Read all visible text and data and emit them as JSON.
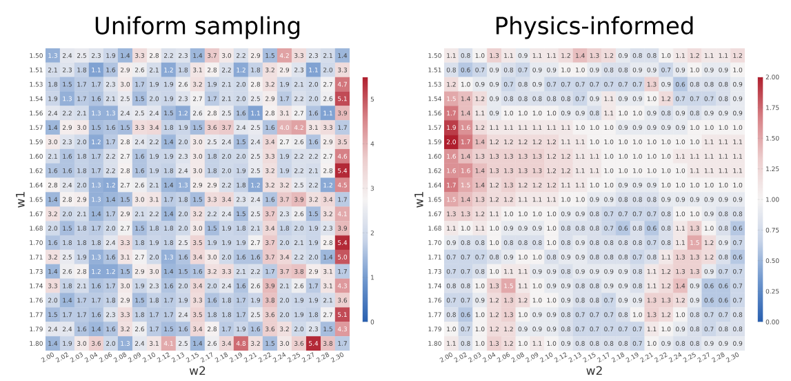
{
  "chart_data": [
    {
      "type": "heatmap",
      "title": "Uniform sampling",
      "xlabel": "w2",
      "ylabel": "w1",
      "data_labels": true,
      "clim": [
        0,
        5.5
      ],
      "cticks": [
        0,
        1,
        2,
        3,
        4,
        5
      ],
      "categories": [
        "2.00",
        "2.02",
        "2.03",
        "2.04",
        "2.06",
        "2.08",
        "2.09",
        "2.10",
        "2.12",
        "2.13",
        "2.15",
        "2.17",
        "2.18",
        "2.19",
        "2.21",
        "2.22",
        "2.24",
        "2.25",
        "2.27",
        "2.28",
        "2.30"
      ],
      "y_categories": [
        "1.50",
        "1.51",
        "1.53",
        "1.54",
        "1.56",
        "1.57",
        "1.59",
        "1.60",
        "1.62",
        "1.64",
        "1.65",
        "1.67",
        "1.68",
        "1.70",
        "1.71",
        "1.73",
        "1.74",
        "1.76",
        "1.77",
        "1.79",
        "1.80"
      ],
      "cells": [
        [
          1.3,
          2.4,
          2.5,
          2.3,
          1.9,
          1.4,
          3.3,
          2.8,
          2.2,
          2.3,
          1.4,
          3.7,
          3.0,
          2.2,
          2.9,
          1.5,
          4.2,
          3.3,
          2.3,
          2.1,
          1.4
        ],
        [
          2.1,
          2.3,
          1.8,
          1.1,
          1.6,
          2.9,
          2.6,
          2.1,
          1.2,
          1.8,
          3.1,
          2.8,
          2.2,
          1.2,
          1.8,
          3.2,
          2.9,
          2.3,
          1.1,
          2.0,
          3.3
        ],
        [
          1.8,
          1.5,
          1.7,
          1.7,
          2.3,
          3.0,
          1.7,
          1.9,
          1.9,
          2.6,
          3.2,
          1.9,
          2.1,
          2.0,
          2.8,
          3.2,
          1.9,
          2.1,
          2.0,
          2.7,
          4.7
        ],
        [
          1.9,
          1.3,
          1.7,
          1.6,
          2.1,
          2.5,
          1.5,
          2.0,
          1.9,
          2.3,
          2.7,
          1.7,
          2.1,
          2.0,
          2.5,
          2.9,
          1.7,
          2.2,
          2.0,
          2.6,
          5.1
        ],
        [
          2.4,
          2.2,
          2.1,
          1.3,
          1.3,
          2.4,
          2.5,
          2.4,
          1.5,
          1.2,
          2.6,
          2.8,
          2.5,
          1.6,
          1.1,
          2.8,
          3.1,
          2.7,
          1.6,
          1.1,
          3.9
        ],
        [
          1.4,
          2.9,
          3.0,
          1.5,
          1.6,
          1.5,
          3.3,
          3.4,
          1.8,
          1.9,
          1.5,
          3.6,
          3.7,
          2.4,
          2.5,
          1.6,
          4.0,
          4.2,
          3.1,
          3.3,
          1.7
        ],
        [
          3.0,
          2.3,
          2.0,
          1.2,
          1.7,
          2.8,
          2.4,
          2.2,
          1.4,
          2.0,
          3.0,
          2.5,
          2.4,
          1.5,
          2.4,
          3.4,
          2.7,
          2.6,
          1.6,
          2.9,
          3.5
        ],
        [
          2.1,
          1.6,
          1.8,
          1.7,
          2.2,
          2.7,
          1.6,
          1.9,
          1.9,
          2.3,
          3.0,
          1.8,
          2.0,
          2.0,
          2.5,
          3.3,
          1.9,
          2.2,
          2.2,
          2.7,
          4.6
        ],
        [
          1.6,
          1.6,
          1.8,
          1.7,
          2.2,
          2.8,
          1.6,
          1.9,
          1.8,
          2.4,
          3.0,
          1.8,
          2.0,
          1.9,
          2.5,
          3.2,
          1.9,
          2.2,
          2.1,
          2.8,
          5.4
        ],
        [
          2.8,
          2.4,
          2.0,
          1.3,
          1.2,
          2.7,
          2.6,
          2.1,
          1.4,
          1.3,
          2.9,
          2.9,
          2.2,
          1.8,
          1.2,
          3.2,
          3.2,
          2.5,
          2.2,
          1.2,
          4.5
        ],
        [
          1.4,
          2.8,
          2.9,
          1.3,
          1.4,
          1.5,
          3.0,
          3.1,
          1.7,
          1.8,
          1.5,
          3.3,
          3.4,
          2.3,
          2.4,
          1.6,
          3.7,
          3.9,
          3.2,
          3.4,
          1.7
        ],
        [
          3.2,
          2.0,
          2.1,
          1.4,
          1.7,
          2.9,
          2.1,
          2.2,
          1.4,
          2.0,
          3.2,
          2.2,
          2.4,
          1.5,
          2.5,
          3.7,
          2.3,
          2.6,
          1.5,
          3.2,
          4.1
        ],
        [
          2.0,
          1.5,
          1.8,
          1.7,
          2.0,
          2.7,
          1.5,
          1.8,
          1.8,
          2.0,
          3.0,
          1.5,
          1.9,
          1.8,
          2.1,
          3.4,
          1.8,
          2.0,
          1.9,
          2.3,
          3.9
        ],
        [
          1.6,
          1.8,
          1.8,
          1.8,
          2.4,
          3.3,
          1.8,
          1.9,
          1.8,
          2.5,
          3.5,
          1.9,
          1.9,
          1.9,
          2.7,
          3.7,
          2.0,
          2.1,
          1.9,
          2.8,
          5.4
        ],
        [
          3.2,
          2.5,
          1.9,
          1.3,
          1.6,
          3.1,
          2.7,
          2.0,
          1.3,
          1.6,
          3.4,
          3.0,
          2.0,
          1.6,
          1.6,
          3.7,
          3.4,
          2.2,
          2.0,
          1.4,
          5.0
        ],
        [
          1.4,
          2.6,
          2.8,
          1.2,
          1.2,
          1.5,
          2.9,
          3.0,
          1.4,
          1.5,
          1.6,
          3.2,
          3.3,
          2.1,
          2.2,
          1.7,
          3.7,
          3.8,
          2.9,
          3.1,
          1.7
        ],
        [
          3.3,
          1.8,
          2.1,
          1.6,
          1.7,
          3.0,
          1.9,
          2.3,
          1.6,
          2.0,
          3.4,
          2.0,
          2.4,
          1.6,
          2.6,
          3.9,
          2.1,
          2.6,
          1.7,
          3.1,
          4.3
        ],
        [
          2.0,
          1.4,
          1.7,
          1.7,
          1.8,
          2.9,
          1.5,
          1.8,
          1.7,
          1.9,
          3.3,
          1.6,
          1.8,
          1.7,
          1.9,
          3.8,
          2.0,
          1.9,
          1.9,
          2.1,
          3.6
        ],
        [
          1.5,
          1.7,
          1.7,
          1.6,
          2.3,
          3.3,
          1.8,
          1.7,
          1.7,
          2.4,
          3.5,
          1.8,
          1.8,
          1.7,
          2.5,
          3.6,
          2.0,
          1.9,
          1.8,
          2.7,
          5.1
        ],
        [
          2.4,
          2.4,
          1.6,
          1.4,
          1.6,
          3.2,
          2.6,
          1.7,
          1.5,
          1.6,
          3.4,
          2.8,
          1.7,
          1.9,
          1.6,
          3.6,
          3.2,
          2.0,
          2.3,
          1.5,
          4.3
        ],
        [
          1.4,
          1.9,
          3.0,
          3.6,
          2.0,
          1.3,
          2.4,
          3.1,
          4.1,
          2.5,
          1.4,
          2.6,
          3.4,
          4.8,
          3.2,
          1.5,
          3.0,
          3.6,
          5.4,
          3.8,
          1.7
        ]
      ],
      "cell_labels": [
        [
          "1.3",
          "2.4",
          "2.5",
          "2.3",
          "1.9",
          "1.4",
          "3.3",
          "2.8",
          "2.2",
          "2.3",
          "1.4",
          "3.7",
          "3.0",
          "2.2",
          "2.9",
          "1.5",
          "4.2",
          "3.3",
          "2.3",
          "2.1",
          "1.4"
        ],
        [
          "2.1",
          "2.3",
          "1.8",
          "1.1",
          "1.6",
          "2.9",
          "2.6",
          "2.1",
          "1.2",
          "1.8",
          "3.1",
          "2.8",
          "2.2",
          "1.2",
          "1.8",
          "3.2",
          "2.9",
          "2.3",
          "1.1",
          "2.0",
          "3.3"
        ],
        [
          "1.8",
          "1.5",
          "1.7",
          "1.7",
          "2.3",
          "3.0",
          "1.7",
          "1.9",
          "1.9",
          "2.6",
          "3.2",
          "1.9",
          "2.1",
          "2.0",
          "2.8",
          "3.2",
          "1.9",
          "2.1",
          "2.0",
          "2.7",
          "4.7"
        ],
        [
          "1.9",
          "1.3",
          "1.7",
          "1.6",
          "2.1",
          "2.5",
          "1.5",
          "2.0",
          "1.9",
          "2.3",
          "2.7",
          "1.7",
          "2.1",
          "2.0",
          "2.5",
          "2.9",
          "1.7",
          "2.2",
          "2.0",
          "2.6",
          "5.1"
        ],
        [
          "2.4",
          "2.2",
          "2.1",
          "1.3",
          "1.3",
          "2.4",
          "2.5",
          "2.4",
          "1.5",
          "1.2",
          "2.6",
          "2.8",
          "2.5",
          "1.6",
          "1.1",
          "2.8",
          "3.1",
          "2.7",
          "1.6",
          "1.1",
          "3.9"
        ],
        [
          "1.4",
          "2.9",
          "3.0",
          "1.5",
          "1.6",
          "1.5",
          "3.3",
          "3.4",
          "1.8",
          "1.9",
          "1.5",
          "3.6",
          "3.7",
          "2.4",
          "2.5",
          "1.6",
          "4.0",
          "4.2",
          "3.1",
          "3.3",
          "1.7"
        ],
        [
          "3.0",
          "2.3",
          "2.0",
          "1.2",
          "1.7",
          "2.8",
          "2.4",
          "2.2",
          "1.4",
          "2.0",
          "3.0",
          "2.5",
          "2.4",
          "1.5",
          "2.4",
          "3.4",
          "2.7",
          "2.6",
          "1.6",
          "2.9",
          "3.5"
        ],
        [
          "2.1",
          "1.6",
          "1.8",
          "1.7",
          "2.2",
          "2.7",
          "1.6",
          "1.9",
          "1.9",
          "2.3",
          "3.0",
          "1.8",
          "2.0",
          "2.0",
          "2.5",
          "3.3",
          "1.9",
          "2.2",
          "2.2",
          "2.7",
          "4.6"
        ],
        [
          "1.6",
          "1.6",
          "1.8",
          "1.7",
          "2.2",
          "2.8",
          "1.6",
          "1.9",
          "1.8",
          "2.4",
          "3.0",
          "1.8",
          "2.0",
          "1.9",
          "2.5",
          "3.2",
          "1.9",
          "2.2",
          "2.1",
          "2.8",
          "5.4"
        ],
        [
          "2.8",
          "2.4",
          "2.0",
          "1.3",
          "1.2",
          "2.7",
          "2.6",
          "2.1",
          "1.4",
          "1.3",
          "2.9",
          "2.9",
          "2.2",
          "1.8",
          "1.2",
          "3.2",
          "3.2",
          "2.5",
          "2.2",
          "1.2",
          "4.5"
        ],
        [
          "1.4",
          "2.8",
          "2.9",
          "1.3",
          "1.4",
          "1.5",
          "3.0",
          "3.1",
          "1.7",
          "1.8",
          "1.5",
          "3.3",
          "3.4",
          "2.3",
          "2.4",
          "1.6",
          "3.7",
          "3.9",
          "3.2",
          "3.4",
          "1.7"
        ],
        [
          "3.2",
          "2.0",
          "2.1",
          "1.4",
          "1.7",
          "2.9",
          "2.1",
          "2.2",
          "1.4",
          "2.0",
          "3.2",
          "2.2",
          "2.4",
          "1.5",
          "2.5",
          "3.7",
          "2.3",
          "2.6",
          "1.5",
          "3.2",
          "4.1"
        ],
        [
          "2.0",
          "1.5",
          "1.8",
          "1.7",
          "2.0",
          "2.7",
          "1.5",
          "1.8",
          "1.8",
          "2.0",
          "3.0",
          "1.5",
          "1.9",
          "1.8",
          "2.1",
          "3.4",
          "1.8",
          "2.0",
          "1.9",
          "2.3",
          "3.9"
        ],
        [
          "1.6",
          "1.8",
          "1.8",
          "1.8",
          "2.4",
          "3.3",
          "1.8",
          "1.9",
          "1.8",
          "2.5",
          "3.5",
          "1.9",
          "1.9",
          "1.9",
          "2.7",
          "3.7",
          "2.0",
          "2.1",
          "1.9",
          "2.8",
          "5.4"
        ],
        [
          "3.2",
          "2.5",
          "1.9",
          "1.3",
          "1.6",
          "3.1",
          "2.7",
          "2.0",
          "1.3",
          "1.6",
          "3.4",
          "3.0",
          "2.0",
          "1.6",
          "1.6",
          "3.7",
          "3.4",
          "2.2",
          "2.0",
          "1.4",
          "5.0"
        ],
        [
          "1.4",
          "2.6",
          "2.8",
          "1.2",
          "1.2",
          "1.5",
          "2.9",
          "3.0",
          "1.4",
          "1.5",
          "1.6",
          "3.2",
          "3.3",
          "2.1",
          "2.2",
          "1.7",
          "3.7",
          "3.8",
          "2.9",
          "3.1",
          "1.7"
        ],
        [
          "3.3",
          "1.8",
          "2.1",
          "1.6",
          "1.7",
          "3.0",
          "1.9",
          "2.3",
          "1.6",
          "2.0",
          "3.4",
          "2.0",
          "2.4",
          "1.6",
          "2.6",
          "3.9",
          "2.1",
          "2.6",
          "1.7",
          "3.1",
          "4.3"
        ],
        [
          "2.0",
          "1.4",
          "1.7",
          "1.7",
          "1.8",
          "2.9",
          "1.5",
          "1.8",
          "1.7",
          "1.9",
          "3.3",
          "1.6",
          "1.8",
          "1.7",
          "1.9",
          "3.8",
          "2.0",
          "1.9",
          "1.9",
          "2.1",
          "3.6"
        ],
        [
          "1.5",
          "1.7",
          "1.7",
          "1.6",
          "2.3",
          "3.3",
          "1.8",
          "1.7",
          "1.7",
          "2.4",
          "3.5",
          "1.8",
          "1.8",
          "1.7",
          "2.5",
          "3.6",
          "2.0",
          "1.9",
          "1.8",
          "2.7",
          "5.1"
        ],
        [
          "2.4",
          "2.4",
          "1.6",
          "1.4",
          "1.6",
          "3.2",
          "2.6",
          "1.7",
          "1.5",
          "1.6",
          "3.4",
          "2.8",
          "1.7",
          "1.9",
          "1.6",
          "3.6",
          "3.2",
          "2.0",
          "2.3",
          "1.5",
          "4.3"
        ],
        [
          "1.4",
          "1.9",
          "3.0",
          "3.6",
          "2.0",
          "1.3",
          "2.4",
          "3.1",
          "4.1",
          "2.5",
          "1.4",
          "2.6",
          "3.4",
          "4.8",
          "3.2",
          "1.5",
          "3.0",
          "3.6",
          "5.4",
          "3.8",
          "1.7"
        ]
      ]
    },
    {
      "type": "heatmap",
      "title": "Physics-informed",
      "xlabel": "w2",
      "ylabel": "w1",
      "data_labels": true,
      "clim": [
        0,
        2
      ],
      "cticks": [
        {
          "value": 0,
          "label": "0.00"
        },
        {
          "value": 0.25,
          "label": "0.25"
        },
        {
          "value": 0.5,
          "label": "0.50"
        },
        {
          "value": 0.75,
          "label": "0.75"
        },
        {
          "value": 1,
          "label": "1.00"
        },
        {
          "value": 1.25,
          "label": "1.25"
        },
        {
          "value": 1.5,
          "label": "1.50"
        },
        {
          "value": 1.75,
          "label": "1.75"
        },
        {
          "value": 2,
          "label": "2.00"
        }
      ],
      "categories": [
        "2.00",
        "2.02",
        "2.03",
        "2.04",
        "2.06",
        "2.08",
        "2.09",
        "2.10",
        "2.12",
        "2.13",
        "2.15",
        "2.17",
        "2.18",
        "2.19",
        "2.21",
        "2.22",
        "2.24",
        "2.25",
        "2.27",
        "2.28",
        "2.30"
      ],
      "y_categories": [
        "1.50",
        "1.51",
        "1.53",
        "1.54",
        "1.56",
        "1.57",
        "1.59",
        "1.60",
        "1.62",
        "1.64",
        "1.65",
        "1.67",
        "1.68",
        "1.70",
        "1.71",
        "1.73",
        "1.74",
        "1.76",
        "1.77",
        "1.79",
        "1.80"
      ],
      "cells": [
        [
          1.1,
          0.8,
          1.0,
          1.3,
          1.1,
          0.9,
          1.1,
          1.1,
          1.2,
          1.4,
          1.3,
          1.2,
          0.9,
          0.8,
          0.8,
          1.0,
          1.1,
          1.2,
          1.1,
          1.1,
          1.2
        ],
        [
          0.8,
          0.6,
          0.7,
          0.9,
          0.8,
          0.7,
          0.9,
          0.9,
          1.0,
          1.0,
          0.9,
          0.8,
          0.8,
          0.9,
          0.9,
          0.7,
          0.9,
          1.0,
          0.9,
          0.9,
          1.0
        ],
        [
          1.2,
          1.0,
          0.9,
          0.9,
          0.7,
          0.8,
          0.9,
          0.7,
          0.7,
          0.7,
          0.7,
          0.7,
          0.7,
          0.7,
          1.3,
          0.9,
          0.6,
          0.8,
          0.8,
          0.8,
          0.9
        ],
        [
          1.5,
          1.4,
          1.2,
          0.9,
          0.8,
          0.8,
          0.8,
          0.8,
          0.8,
          0.7,
          0.9,
          1.1,
          0.9,
          0.9,
          1.0,
          1.2,
          0.7,
          0.7,
          0.7,
          0.8,
          0.9
        ],
        [
          1.7,
          1.4,
          1.1,
          0.9,
          1.0,
          1.0,
          1.0,
          1.0,
          0.9,
          0.9,
          0.8,
          1.1,
          1.0,
          1.0,
          0.9,
          0.8,
          0.9,
          0.8,
          0.9,
          0.9,
          0.9
        ],
        [
          1.9,
          1.6,
          1.2,
          1.1,
          1.1,
          1.1,
          1.1,
          1.1,
          1.1,
          1.0,
          1.0,
          1.0,
          0.9,
          0.9,
          0.9,
          0.9,
          0.9,
          1.0,
          1.0,
          1.0,
          1.0
        ],
        [
          2.0,
          1.7,
          1.4,
          1.2,
          1.2,
          1.2,
          1.2,
          1.2,
          1.1,
          1.1,
          1.0,
          1.0,
          1.0,
          1.0,
          1.0,
          1.0,
          1.0,
          1.0,
          1.1,
          1.1,
          1.1
        ],
        [
          1.6,
          1.4,
          1.3,
          1.3,
          1.3,
          1.3,
          1.3,
          1.2,
          1.2,
          1.1,
          1.1,
          1.0,
          1.0,
          1.0,
          1.0,
          1.0,
          1.1,
          1.1,
          1.1,
          1.1,
          1.1
        ],
        [
          1.6,
          1.6,
          1.4,
          1.3,
          1.3,
          1.3,
          1.3,
          1.2,
          1.2,
          1.1,
          1.1,
          1.0,
          1.0,
          1.0,
          1.0,
          1.0,
          1.0,
          1.1,
          1.1,
          1.1,
          1.1
        ],
        [
          1.7,
          1.5,
          1.4,
          1.2,
          1.3,
          1.2,
          1.2,
          1.2,
          1.1,
          1.1,
          1.0,
          1.0,
          0.9,
          0.9,
          0.9,
          1.0,
          1.0,
          1.0,
          1.0,
          1.0,
          1.0
        ],
        [
          1.5,
          1.4,
          1.3,
          1.2,
          1.2,
          1.1,
          1.1,
          1.1,
          1.0,
          1.0,
          0.9,
          0.9,
          0.8,
          0.8,
          0.8,
          0.9,
          0.9,
          0.9,
          0.9,
          0.9,
          0.9
        ],
        [
          1.3,
          1.3,
          1.2,
          1.1,
          1.0,
          1.0,
          1.0,
          1.0,
          0.9,
          0.9,
          0.8,
          0.7,
          0.7,
          0.7,
          0.7,
          0.8,
          1.0,
          1.0,
          0.9,
          0.8,
          0.8
        ],
        [
          1.1,
          1.0,
          1.1,
          1.0,
          0.9,
          0.9,
          0.9,
          1.0,
          0.8,
          0.8,
          0.8,
          0.7,
          0.6,
          0.8,
          0.6,
          0.8,
          1.1,
          1.3,
          1.0,
          0.8,
          0.6
        ],
        [
          0.9,
          0.8,
          0.8,
          1.0,
          0.8,
          0.8,
          0.8,
          1.0,
          0.8,
          0.9,
          0.8,
          0.8,
          0.8,
          0.8,
          0.7,
          0.8,
          1.1,
          1.5,
          1.2,
          0.9,
          0.7
        ],
        [
          0.7,
          0.7,
          0.7,
          0.8,
          0.9,
          1.0,
          1.0,
          0.8,
          0.9,
          0.9,
          0.8,
          0.8,
          0.8,
          0.7,
          0.8,
          1.1,
          1.3,
          1.3,
          1.2,
          0.8,
          0.6
        ],
        [
          0.7,
          0.7,
          0.8,
          1.0,
          1.1,
          1.1,
          0.9,
          0.9,
          0.8,
          0.9,
          0.9,
          0.9,
          0.9,
          0.8,
          1.1,
          1.2,
          1.3,
          1.3,
          0.9,
          0.7,
          0.7
        ],
        [
          0.8,
          0.8,
          1.0,
          1.3,
          1.5,
          1.1,
          1.0,
          0.9,
          0.9,
          0.8,
          0.8,
          0.9,
          0.9,
          0.8,
          1.1,
          1.2,
          1.4,
          0.9,
          0.6,
          0.6,
          0.7
        ],
        [
          0.7,
          0.7,
          0.9,
          1.2,
          1.3,
          1.2,
          1.0,
          1.0,
          0.9,
          0.8,
          0.8,
          0.7,
          0.9,
          0.9,
          1.3,
          1.3,
          1.2,
          0.9,
          0.6,
          0.6,
          0.7
        ],
        [
          0.8,
          0.6,
          1.0,
          1.2,
          1.3,
          1.0,
          0.9,
          0.9,
          0.8,
          0.7,
          0.7,
          0.7,
          0.8,
          1.0,
          1.3,
          1.2,
          1.0,
          0.8,
          0.7,
          0.7,
          0.8
        ],
        [
          1.0,
          0.7,
          1.0,
          1.2,
          1.2,
          0.9,
          0.9,
          0.9,
          0.8,
          0.7,
          0.7,
          0.7,
          0.7,
          0.7,
          1.1,
          1.0,
          0.9,
          0.8,
          0.7,
          0.8,
          0.8
        ],
        [
          1.1,
          0.8,
          1.0,
          1.3,
          1.2,
          1.0,
          1.1,
          1.0,
          0.9,
          0.8,
          0.8,
          0.8,
          0.8,
          0.7,
          1.0,
          0.9,
          0.8,
          0.8,
          0.9,
          0.9,
          0.9
        ]
      ],
      "cell_labels": [
        [
          "1.1",
          "0.8",
          "1.0",
          "1.3",
          "1.1",
          "0.9",
          "1.1",
          "1.1",
          "1.2",
          "1.4",
          "1.3",
          "1.2",
          "0.9",
          "0.8",
          "0.8",
          "1.0",
          "1.1",
          "1.2",
          "1.1",
          "1.1",
          "1.2"
        ],
        [
          "0.8",
          "0.6",
          "0.7",
          "0.9",
          "0.8",
          "0.7",
          "0.9",
          "0.9",
          "1.0",
          "1.0",
          "0.9",
          "0.8",
          "0.8",
          "0.9",
          "0.9",
          "0.7",
          "0.9",
          "1.0",
          "0.9",
          "0.9",
          "1.0"
        ],
        [
          "1.2",
          "1.0",
          "0.9",
          "0.9",
          "0.7",
          "0.8",
          "0.9",
          "0.7",
          "0.7",
          "0.7",
          "0.7",
          "0.7",
          "0.7",
          "0.7",
          "1.3",
          "0.9",
          "0.6",
          "0.8",
          "0.8",
          "0.8",
          "0.9"
        ],
        [
          "1.5",
          "1.4",
          "1.2",
          "0.9",
          "0.8",
          "0.8",
          "0.8",
          "0.8",
          "0.8",
          "0.7",
          "0.9",
          "1.1",
          "0.9",
          "0.9",
          "1.0",
          "1.2",
          "0.7",
          "0.7",
          "0.7",
          "0.8",
          "0.9"
        ],
        [
          "1.7",
          "1.4",
          "1.1",
          "0.9",
          "1.0",
          "1.0",
          "1.0",
          "1.0",
          "0.9",
          "0.9",
          "0.8",
          "1.1",
          "1.0",
          "1.0",
          "0.9",
          "0.8",
          "0.9",
          "0.8",
          "0.9",
          "0.9",
          "0.9"
        ],
        [
          "1.9",
          "1.6",
          "1.2",
          "1.1",
          "1.1",
          "1.1",
          "1.1",
          "1.1",
          "1.1",
          "1.0",
          "1.0",
          "1.0",
          "0.9",
          "0.9",
          "0.9",
          "0.9",
          "0.9",
          "1.0",
          "1.0",
          "1.0",
          "1.0"
        ],
        [
          "2.0",
          "1.7",
          "1.4",
          "1.2",
          "1.2",
          "1.2",
          "1.2",
          "1.2",
          "1.1",
          "1.1",
          "1.0",
          "1.0",
          "1.0",
          "1.0",
          "1.0",
          "1.0",
          "1.0",
          "1.0",
          "1.1",
          "1.1",
          "1.1"
        ],
        [
          "1.6",
          "1.4",
          "1.3",
          "1.3",
          "1.3",
          "1.3",
          "1.3",
          "1.2",
          "1.2",
          "1.1",
          "1.1",
          "1.0",
          "1.0",
          "1.0",
          "1.0",
          "1.0",
          "1.1",
          "1.1",
          "1.1",
          "1.1",
          "1.1"
        ],
        [
          "1.6",
          "1.6",
          "1.4",
          "1.3",
          "1.3",
          "1.3",
          "1.3",
          "1.2",
          "1.2",
          "1.1",
          "1.1",
          "1.0",
          "1.0",
          "1.0",
          "1.0",
          "1.0",
          "1.0",
          "1.1",
          "1.1",
          "1.1",
          "1.1"
        ],
        [
          "1.7",
          "1.5",
          "1.4",
          "1.2",
          "1.3",
          "1.2",
          "1.2",
          "1.2",
          "1.1",
          "1.1",
          "1.0",
          "1.0",
          "0.9",
          "0.9",
          "0.9",
          "1.0",
          "1.0",
          "1.0",
          "1.0",
          "1.0",
          "1.0"
        ],
        [
          "1.5",
          "1.4",
          "1.3",
          "1.2",
          "1.2",
          "1.1",
          "1.1",
          "1.1",
          "1.0",
          "1.0",
          "0.9",
          "0.9",
          "0.8",
          "0.8",
          "0.8",
          "0.9",
          "0.9",
          "0.9",
          "0.9",
          "0.9",
          "0.9"
        ],
        [
          "1.3",
          "1.3",
          "1.2",
          "1.1",
          "1.0",
          "1.0",
          "1.0",
          "1.0",
          "0.9",
          "0.9",
          "0.8",
          "0.7",
          "0.7",
          "0.7",
          "0.7",
          "0.8",
          "1.0",
          "1.0",
          "0.9",
          "0.8",
          "0.8"
        ],
        [
          "1.1",
          "1.0",
          "1.1",
          "1.0",
          "0.9",
          "0.9",
          "0.9",
          "1.0",
          "0.8",
          "0.8",
          "0.8",
          "0.7",
          "0.6",
          "0.8",
          "0.6",
          "0.8",
          "1.1",
          "1.3",
          "1.0",
          "0.8",
          "0.6"
        ],
        [
          "0.9",
          "0.8",
          "0.8",
          "1.0",
          "0.8",
          "0.8",
          "0.8",
          "1.0",
          "0.8",
          "0.9",
          "0.8",
          "0.8",
          "0.8",
          "0.8",
          "0.7",
          "0.8",
          "1.1",
          "1.5",
          "1.2",
          "0.9",
          "0.7"
        ],
        [
          "0.7",
          "0.7",
          "0.7",
          "0.8",
          "0.9",
          "1.0",
          "1.0",
          "0.8",
          "0.9",
          "0.9",
          "0.8",
          "0.8",
          "0.8",
          "0.7",
          "0.8",
          "1.1",
          "1.3",
          "1.3",
          "1.2",
          "0.8",
          "0.6"
        ],
        [
          "0.7",
          "0.7",
          "0.8",
          "1.0",
          "1.1",
          "1.1",
          "0.9",
          "0.9",
          "0.8",
          "0.9",
          "0.9",
          "0.9",
          "0.9",
          "0.8",
          "1.1",
          "1.2",
          "1.3",
          "1.3",
          "0.9",
          "0.7",
          "0.7"
        ],
        [
          "0.8",
          "0.8",
          "1.0",
          "1.3",
          "1.5",
          "1.1",
          "1.0",
          "0.9",
          "0.9",
          "0.8",
          "0.8",
          "0.9",
          "0.9",
          "0.8",
          "1.1",
          "1.2",
          "1.4",
          "0.9",
          "0.6",
          "0.6",
          "0.7"
        ],
        [
          "0.7",
          "0.7",
          "0.9",
          "1.2",
          "1.3",
          "1.2",
          "1.0",
          "1.0",
          "0.9",
          "0.8",
          "0.8",
          "0.7",
          "0.9",
          "0.9",
          "1.3",
          "1.3",
          "1.2",
          "0.9",
          "0.6",
          "0.6",
          "0.7"
        ],
        [
          "0.8",
          "0.6",
          "1.0",
          "1.2",
          "1.3",
          "1.0",
          "0.9",
          "0.9",
          "0.8",
          "0.7",
          "0.7",
          "0.7",
          "0.8",
          "1.0",
          "1.3",
          "1.2",
          "1.0",
          "0.8",
          "0.7",
          "0.7",
          "0.8"
        ],
        [
          "1.0",
          "0.7",
          "1.0",
          "1.2",
          "1.2",
          "0.9",
          "0.9",
          "0.9",
          "0.8",
          "0.7",
          "0.7",
          "0.7",
          "0.7",
          "0.7",
          "1.1",
          "1.0",
          "0.9",
          "0.8",
          "0.7",
          "0.8",
          "0.8"
        ],
        [
          "1.1",
          "0.8",
          "1.0",
          "1.3",
          "1.2",
          "1.0",
          "1.1",
          "1.0",
          "0.9",
          "0.8",
          "0.8",
          "0.8",
          "0.8",
          "0.7",
          "1.0",
          "0.9",
          "0.8",
          "0.8",
          "0.9",
          "0.9",
          "0.9"
        ]
      ]
    }
  ]
}
